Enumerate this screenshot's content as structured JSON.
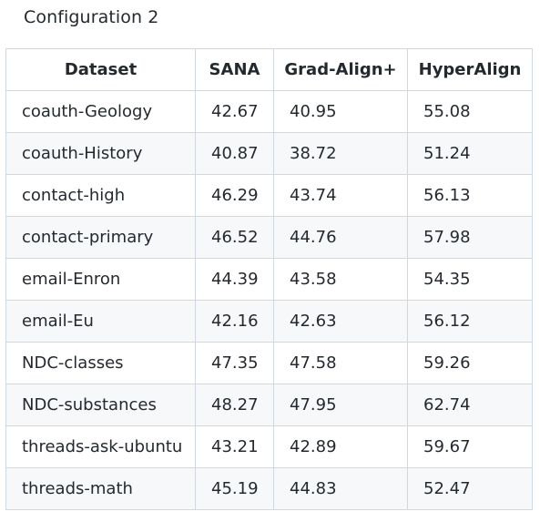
{
  "caption": "Configuration 2",
  "table": {
    "headers": [
      "Dataset",
      "SANA",
      "Grad-Align+",
      "HyperAlign"
    ],
    "rows": [
      [
        "coauth-Geology",
        "42.67",
        "40.95",
        "55.08"
      ],
      [
        "coauth-History",
        "40.87",
        "38.72",
        "51.24"
      ],
      [
        "contact-high",
        "46.29",
        "43.74",
        "56.13"
      ],
      [
        "contact-primary",
        "46.52",
        "44.76",
        "57.98"
      ],
      [
        "email-Enron",
        "44.39",
        "43.58",
        "54.35"
      ],
      [
        "email-Eu",
        "42.16",
        "42.63",
        "56.12"
      ],
      [
        "NDC-classes",
        "47.35",
        "47.58",
        "59.26"
      ],
      [
        "NDC-substances",
        "48.27",
        "47.95",
        "62.74"
      ],
      [
        "threads-ask-ubuntu",
        "43.21",
        "42.89",
        "59.67"
      ],
      [
        "threads-math",
        "45.19",
        "44.83",
        "52.47"
      ]
    ]
  }
}
